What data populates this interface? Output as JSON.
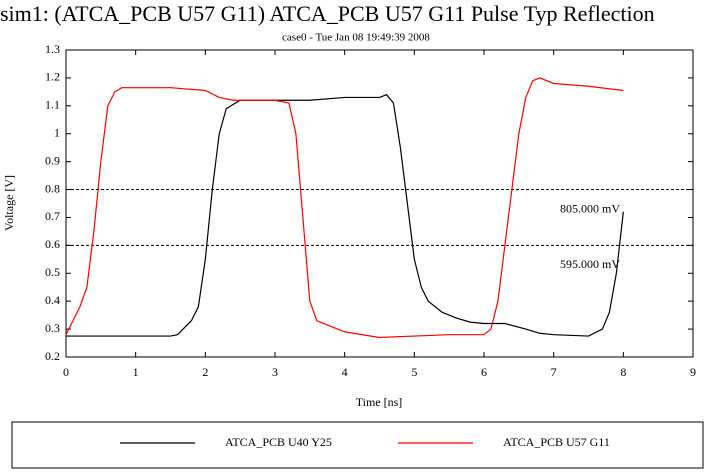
{
  "chart_data": {
    "type": "line",
    "title": "sim1: (ATCA_PCB U57 G11) ATCA_PCB U57 G11 Pulse Typ Reflection",
    "subtitle": "case0 - Tue Jan 08 19:49:39 2008",
    "x_label": "Time [ns]",
    "y_label": "Voltage [V]",
    "xlim": [
      0,
      9
    ],
    "xticks": [
      0,
      1,
      2,
      3,
      4,
      5,
      6,
      7,
      8,
      9
    ],
    "ylim": [
      0.2,
      1.3
    ],
    "yticks": [
      0.2,
      0.3,
      0.4,
      0.5,
      0.6,
      0.7,
      0.8,
      0.9,
      1,
      1.1,
      1.2,
      1.3
    ],
    "reference_lines": [
      0.8,
      0.6
    ],
    "annotations": [
      "805.000 mV",
      "595.000 mV"
    ],
    "series": [
      {
        "name": "ATCA_PCB U40 Y25",
        "color": "#000000",
        "x": [
          0,
          1.5,
          1.6,
          1.8,
          1.9,
          2.0,
          2.1,
          2.2,
          2.3,
          2.5,
          3.0,
          3.5,
          4.0,
          4.5,
          4.6,
          4.7,
          4.8,
          4.9,
          5.0,
          5.1,
          5.2,
          5.4,
          5.6,
          5.8,
          6.0,
          6.3,
          6.6,
          6.8,
          7.0,
          7.5,
          7.7,
          7.8,
          7.9,
          8.0
        ],
        "values": [
          0.275,
          0.275,
          0.28,
          0.33,
          0.38,
          0.55,
          0.8,
          1.0,
          1.09,
          1.12,
          1.12,
          1.12,
          1.13,
          1.13,
          1.14,
          1.11,
          0.95,
          0.75,
          0.55,
          0.45,
          0.4,
          0.36,
          0.34,
          0.325,
          0.32,
          0.32,
          0.3,
          0.285,
          0.28,
          0.275,
          0.3,
          0.36,
          0.5,
          0.72
        ]
      },
      {
        "name": "ATCA_PCB U57 G11",
        "color": "#ff0000",
        "x": [
          0,
          0.1,
          0.2,
          0.3,
          0.4,
          0.5,
          0.6,
          0.7,
          0.8,
          1.0,
          1.5,
          2.0,
          2.2,
          2.4,
          3.0,
          3.2,
          3.3,
          3.4,
          3.5,
          3.6,
          3.8,
          4.0,
          4.5,
          5.0,
          5.5,
          6.0,
          6.1,
          6.2,
          6.3,
          6.4,
          6.5,
          6.6,
          6.7,
          6.8,
          7.0,
          7.5,
          8.0
        ],
        "values": [
          0.28,
          0.33,
          0.38,
          0.45,
          0.65,
          0.9,
          1.1,
          1.15,
          1.165,
          1.165,
          1.165,
          1.155,
          1.13,
          1.12,
          1.12,
          1.11,
          1.0,
          0.7,
          0.4,
          0.33,
          0.31,
          0.29,
          0.27,
          0.275,
          0.28,
          0.28,
          0.3,
          0.4,
          0.6,
          0.8,
          1.0,
          1.13,
          1.19,
          1.2,
          1.18,
          1.17,
          1.155
        ]
      }
    ]
  }
}
